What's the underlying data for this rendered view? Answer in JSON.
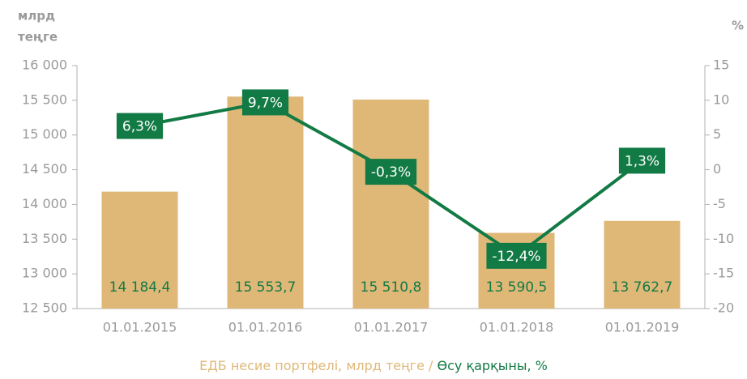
{
  "chart_data": {
    "type": "bar_line",
    "y_label": [
      "млрд",
      "теңге"
    ],
    "y2_label": "%",
    "categories": [
      "01.01.2015",
      "01.01.2016",
      "01.01.2017",
      "01.01.2018",
      "01.01.2019"
    ],
    "series": [
      {
        "name": "ЕДБ несие портфелі, млрд теңге",
        "type": "bar",
        "color": "#dfb878",
        "values": [
          14184.4,
          15553.7,
          15510.8,
          13590.5,
          13762.7
        ],
        "value_labels": [
          "14 184,4",
          "15 553,7",
          "15 510,8",
          "13 590,5",
          "13 762,7"
        ]
      },
      {
        "name": "Өсу қарқыны, %",
        "type": "line",
        "axis": "y2",
        "color": "#127a44",
        "values": [
          6.3,
          9.7,
          -0.3,
          -12.4,
          1.3
        ],
        "value_labels": [
          "6,3%",
          "9,7%",
          "-0,3%",
          "-12,4%",
          "1,3%"
        ]
      }
    ],
    "legend_separator": "/",
    "ylim": [
      12500,
      16000
    ],
    "yticks": [
      {
        "value": 12500,
        "label": "12 500"
      },
      {
        "value": 13000,
        "label": "13 000"
      },
      {
        "value": 13500,
        "label": "13 500"
      },
      {
        "value": 14000,
        "label": "14 000"
      },
      {
        "value": 14500,
        "label": "14 500"
      },
      {
        "value": 15000,
        "label": "15 000"
      },
      {
        "value": 15500,
        "label": "15 500"
      },
      {
        "value": 16000,
        "label": "16 000"
      }
    ],
    "y2lim": [
      -20,
      15
    ],
    "y2ticks": [
      -20,
      -15,
      -10,
      -5,
      0,
      5,
      10,
      15
    ]
  }
}
